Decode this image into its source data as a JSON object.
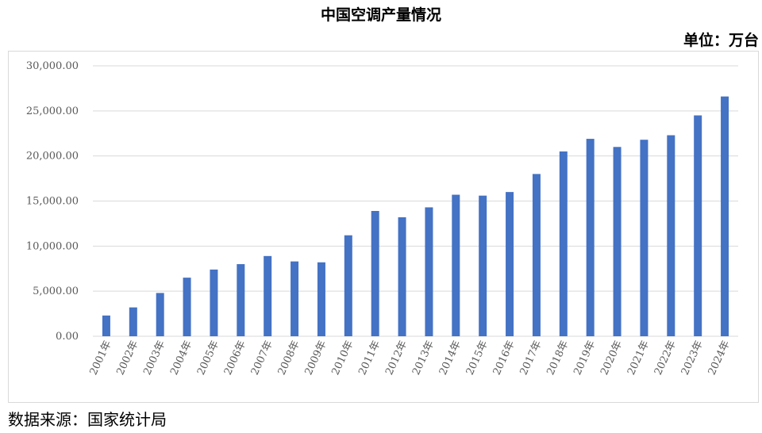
{
  "header": {
    "title": "中国空调产量情况",
    "unit": "单位：万台"
  },
  "footer": {
    "source": "数据来源：国家统计局"
  },
  "colors": {
    "bar": "#4472c4",
    "grid": "#d9d9d9",
    "tick_text": "#595959"
  },
  "chart_data": {
    "type": "bar",
    "title": "中国空调产量情况",
    "xlabel": "",
    "ylabel": "",
    "grid": true,
    "legend": "none",
    "ylim": [
      0,
      30000
    ],
    "y_ticks": [
      "0.00",
      "5,000.00",
      "10,000.00",
      "15,000.00",
      "20,000.00",
      "25,000.00",
      "30,000.00"
    ],
    "categories": [
      "2001年",
      "2002年",
      "2003年",
      "2004年",
      "2005年",
      "2006年",
      "2007年",
      "2008年",
      "2009年",
      "2010年",
      "2011年",
      "2012年",
      "2013年",
      "2014年",
      "2015年",
      "2016年",
      "2017年",
      "2018年",
      "2019年",
      "2020年",
      "2021年",
      "2022年",
      "2023年",
      "2024年"
    ],
    "values": [
      2300,
      3200,
      4800,
      6500,
      7400,
      8000,
      8900,
      8300,
      8200,
      11200,
      13900,
      13200,
      14300,
      15700,
      15600,
      16000,
      18000,
      20500,
      21900,
      21000,
      21800,
      22300,
      24500,
      26600
    ]
  }
}
